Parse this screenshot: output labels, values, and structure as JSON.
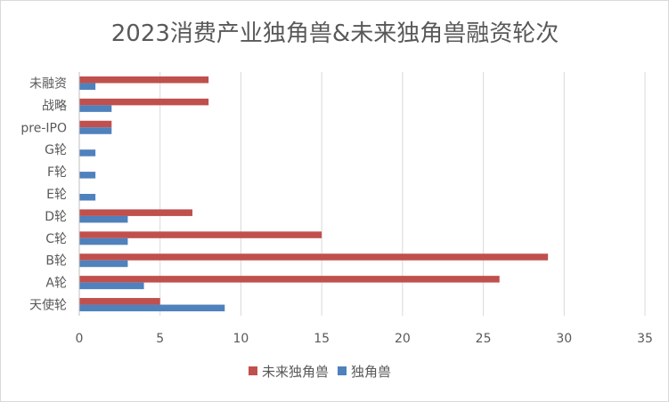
{
  "chart_data": {
    "type": "bar",
    "orientation": "horizontal",
    "title": "2023消费产业独角兽&未来独角兽融资轮次",
    "categories": [
      "未融资",
      "战略",
      "pre-IPO",
      "G轮",
      "F轮",
      "E轮",
      "D轮",
      "C轮",
      "B轮",
      "A轮",
      "天使轮"
    ],
    "series": [
      {
        "name": "未来独角兽",
        "color": "#c0504d",
        "values": [
          8,
          8,
          2,
          0,
          0,
          0,
          7,
          15,
          29,
          26,
          5
        ]
      },
      {
        "name": "独角兽",
        "color": "#4f81bd",
        "values": [
          1,
          2,
          2,
          1,
          1,
          1,
          3,
          3,
          3,
          4,
          9
        ]
      }
    ],
    "xlim": [
      0,
      35
    ],
    "xticks": [
      0,
      5,
      10,
      15,
      20,
      25,
      30,
      35
    ],
    "grid": true,
    "legend_position": "bottom"
  }
}
